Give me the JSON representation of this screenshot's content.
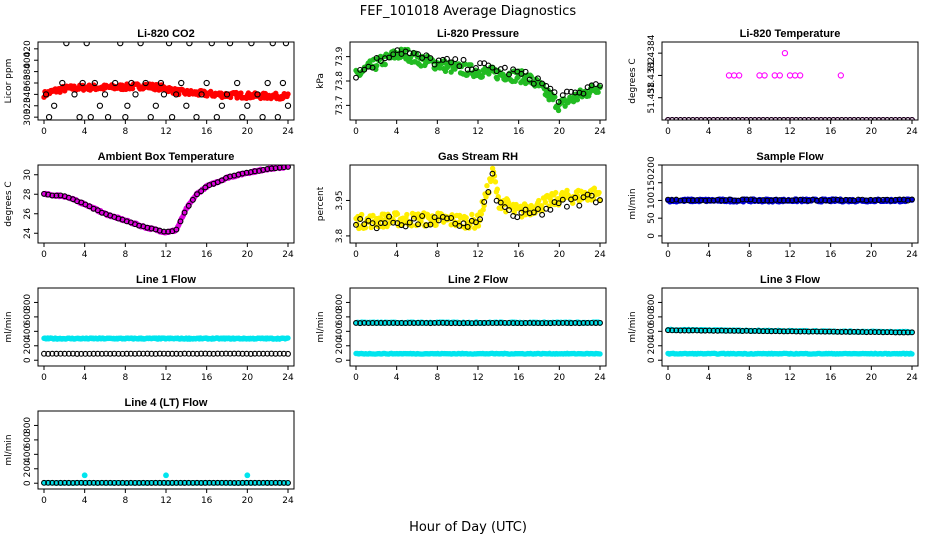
{
  "title": "FEF_101018  Average Diagnostics",
  "xlabel": "Hour of Day (UTC)",
  "chart_data": [
    {
      "type": "scatter",
      "title": "Li-820 CO2",
      "ylabel": "Licor ppm",
      "xlim": [
        0,
        24
      ],
      "ylim": [
        295,
        432
      ],
      "xticks": [
        0,
        4,
        8,
        12,
        16,
        20,
        24
      ],
      "yticks": [
        300,
        320,
        340,
        360,
        380,
        400,
        420
      ],
      "series": [
        {
          "color": "#ff0000",
          "marker": "filled",
          "trend": [
            [
              0,
              340
            ],
            [
              1,
              346
            ],
            [
              2,
              350
            ],
            [
              4,
              352
            ],
            [
              6,
              352
            ],
            [
              8,
              353
            ],
            [
              10,
              355
            ],
            [
              12,
              351
            ],
            [
              13,
              345
            ],
            [
              14,
              343
            ],
            [
              16,
              341
            ],
            [
              18,
              339
            ],
            [
              20,
              338
            ],
            [
              22,
              337
            ],
            [
              24,
              337
            ]
          ],
          "spread": 5
        },
        {
          "color": "#000000",
          "marker": "open",
          "points": [
            [
              0.2,
              340
            ],
            [
              0.5,
              300
            ],
            [
              1,
              320
            ],
            [
              1.8,
              360
            ],
            [
              2.2,
              430
            ],
            [
              3,
              340
            ],
            [
              3.5,
              300
            ],
            [
              3.8,
              360
            ],
            [
              4.2,
              430
            ],
            [
              4.6,
              300
            ],
            [
              5,
              360
            ],
            [
              5.5,
              320
            ],
            [
              6,
              340
            ],
            [
              6.3,
              300
            ],
            [
              7,
              360
            ],
            [
              7.5,
              430
            ],
            [
              8,
              300
            ],
            [
              8.2,
              320
            ],
            [
              8.6,
              360
            ],
            [
              9,
              340
            ],
            [
              9.5,
              430
            ],
            [
              10,
              360
            ],
            [
              10.5,
              300
            ],
            [
              11,
              320
            ],
            [
              11.5,
              360
            ],
            [
              11.8,
              340
            ],
            [
              12.3,
              430
            ],
            [
              12.6,
              300
            ],
            [
              13,
              340
            ],
            [
              13.5,
              360
            ],
            [
              14,
              320
            ],
            [
              14.3,
              430
            ],
            [
              15,
              300
            ],
            [
              15.5,
              340
            ],
            [
              16,
              360
            ],
            [
              16.5,
              430
            ],
            [
              17,
              300
            ],
            [
              17.5,
              320
            ],
            [
              18,
              340
            ],
            [
              18.3,
              430
            ],
            [
              19,
              360
            ],
            [
              19.5,
              300
            ],
            [
              20,
              320
            ],
            [
              20.4,
              430
            ],
            [
              21,
              340
            ],
            [
              21.5,
              300
            ],
            [
              22,
              360
            ],
            [
              22.5,
              430
            ],
            [
              23,
              300
            ],
            [
              23.5,
              360
            ],
            [
              23.8,
              430
            ],
            [
              24,
              320
            ]
          ]
        }
      ]
    },
    {
      "type": "scatter",
      "title": "Li-820 Pressure",
      "ylabel": "kPa",
      "xlim": [
        0,
        24
      ],
      "ylim": [
        73.64,
        73.96
      ],
      "xticks": [
        0,
        4,
        8,
        12,
        16,
        20,
        24
      ],
      "yticks": [
        73.7,
        73.8,
        73.9
      ],
      "series": [
        {
          "color": "#22bb22",
          "marker": "filled",
          "trend": [
            [
              0,
              73.82
            ],
            [
              1,
              73.85
            ],
            [
              2,
              73.87
            ],
            [
              3,
              73.89
            ],
            [
              4,
              73.91
            ],
            [
              5,
              73.91
            ],
            [
              6,
              73.89
            ],
            [
              8,
              73.87
            ],
            [
              10,
              73.85
            ],
            [
              12,
              73.84
            ],
            [
              14,
              73.83
            ],
            [
              16,
              73.82
            ],
            [
              17,
              73.81
            ],
            [
              18,
              73.78
            ],
            [
              19,
              73.74
            ],
            [
              20,
              73.7
            ],
            [
              21,
              73.72
            ],
            [
              22,
              73.74
            ],
            [
              23,
              73.76
            ],
            [
              24,
              73.78
            ]
          ],
          "spread": 0.025
        },
        {
          "color": "#000000",
          "marker": "open",
          "trend": [
            [
              0,
              73.83
            ],
            [
              2,
              73.88
            ],
            [
              4,
              73.93
            ],
            [
              6,
              73.9
            ],
            [
              8,
              73.88
            ],
            [
              10,
              73.87
            ],
            [
              12,
              73.86
            ],
            [
              14,
              73.85
            ],
            [
              16,
              73.83
            ],
            [
              18,
              73.8
            ],
            [
              20,
              73.73
            ],
            [
              22,
              73.75
            ],
            [
              24,
              73.8
            ]
          ],
          "spread": 0.02
        }
      ]
    },
    {
      "type": "scatter",
      "title": "Li-820 Temperature",
      "ylabel": "degrees C",
      "xlim": [
        0,
        24
      ],
      "ylim": [
        51.4378,
        51.4385
      ],
      "xticks": [
        0,
        4,
        8,
        12,
        16,
        20,
        24
      ],
      "yticks": [
        51.438,
        51.4382,
        51.4384
      ],
      "series": [
        {
          "color": "#ff00ff",
          "marker": "open",
          "points": [
            [
              6,
              51.4382
            ],
            [
              6.5,
              51.4382
            ],
            [
              7,
              51.4382
            ],
            [
              9,
              51.4382
            ],
            [
              9.5,
              51.4382
            ],
            [
              10.5,
              51.4382
            ],
            [
              11,
              51.4382
            ],
            [
              11.5,
              51.4384
            ],
            [
              12,
              51.4382
            ],
            [
              12.5,
              51.4382
            ],
            [
              13,
              51.4382
            ],
            [
              17,
              51.4382
            ]
          ],
          "baseline": 51.4378
        },
        {
          "color": "#000000",
          "marker": "open",
          "baseline": 51.4378
        }
      ]
    },
    {
      "type": "scatter",
      "title": "Ambient Box Temperature",
      "ylabel": "degrees C",
      "xlim": [
        0,
        24
      ],
      "ylim": [
        23,
        31
      ],
      "xticks": [
        0,
        4,
        8,
        12,
        16,
        20,
        24
      ],
      "yticks": [
        24,
        26,
        28,
        30
      ],
      "series": [
        {
          "color": "#dd00dd",
          "marker": "filled",
          "trend": [
            [
              0,
              28
            ],
            [
              2,
              27.8
            ],
            [
              4,
              27
            ],
            [
              6,
              26
            ],
            [
              8,
              25.3
            ],
            [
              10,
              24.6
            ],
            [
              12,
              24.1
            ],
            [
              13,
              24.3
            ],
            [
              14,
              26.5
            ],
            [
              15,
              28
            ],
            [
              16,
              28.8
            ],
            [
              18,
              29.7
            ],
            [
              20,
              30.2
            ],
            [
              22,
              30.6
            ],
            [
              24,
              30.8
            ]
          ],
          "spread": 0.1
        },
        {
          "color": "#000000",
          "marker": "open",
          "trend": [
            [
              0,
              28
            ],
            [
              2,
              27.8
            ],
            [
              4,
              27
            ],
            [
              6,
              26
            ],
            [
              8,
              25.3
            ],
            [
              10,
              24.6
            ],
            [
              12,
              24.1
            ],
            [
              13,
              24.3
            ],
            [
              14,
              26.5
            ],
            [
              15,
              28
            ],
            [
              16,
              28.8
            ],
            [
              18,
              29.7
            ],
            [
              20,
              30.2
            ],
            [
              22,
              30.6
            ],
            [
              24,
              30.8
            ]
          ],
          "spread": 0.05
        }
      ]
    },
    {
      "type": "scatter",
      "title": "Gas Stream RH",
      "ylabel": "percent",
      "xlim": [
        0,
        24
      ],
      "ylim": [
        3.77,
        4.1
      ],
      "xticks": [
        0,
        4,
        8,
        12,
        16,
        20,
        24
      ],
      "yticks": [
        3.8,
        3.95
      ],
      "series": [
        {
          "color": "#ffee00",
          "marker": "filled",
          "trend": [
            [
              0,
              3.86
            ],
            [
              4,
              3.87
            ],
            [
              8,
              3.87
            ],
            [
              12,
              3.86
            ],
            [
              13,
              4.0
            ],
            [
              13.5,
              4.07
            ],
            [
              14,
              3.95
            ],
            [
              16,
              3.9
            ],
            [
              18,
              3.93
            ],
            [
              20,
              3.96
            ],
            [
              22,
              3.97
            ],
            [
              24,
              3.98
            ]
          ],
          "spread": 0.03
        },
        {
          "color": "#000000",
          "marker": "open",
          "trend": [
            [
              0,
              3.85
            ],
            [
              4,
              3.86
            ],
            [
              8,
              3.86
            ],
            [
              12,
              3.85
            ],
            [
              13,
              3.98
            ],
            [
              13.5,
              4.05
            ],
            [
              14,
              3.93
            ],
            [
              16,
              3.88
            ],
            [
              18,
              3.9
            ],
            [
              20,
              3.93
            ],
            [
              22,
              3.95
            ],
            [
              24,
              3.97
            ]
          ],
          "spread": 0.025
        }
      ]
    },
    {
      "type": "scatter",
      "title": "Sample Flow",
      "ylabel": "ml/min",
      "xlim": [
        0,
        24
      ],
      "ylim": [
        -20,
        200
      ],
      "xticks": [
        0,
        4,
        8,
        12,
        16,
        20,
        24
      ],
      "yticks": [
        0,
        50,
        100,
        150,
        200
      ],
      "series": [
        {
          "color": "#0000dd",
          "marker": "filled",
          "trend": [
            [
              0,
              100
            ],
            [
              24,
              100
            ]
          ],
          "spread": 4
        },
        {
          "color": "#000000",
          "marker": "open",
          "trend": [
            [
              0,
              101
            ],
            [
              24,
              101
            ]
          ],
          "spread": 2
        }
      ]
    },
    {
      "type": "scatter",
      "title": "Line 1 Flow",
      "ylabel": "ml/min",
      "xlim": [
        0,
        24
      ],
      "ylim": [
        -80,
        1000
      ],
      "xticks": [
        0,
        4,
        8,
        12,
        16,
        20,
        24
      ],
      "yticks": [
        0,
        200,
        400,
        600,
        800
      ],
      "series": [
        {
          "color": "#00e5ee",
          "marker": "filled",
          "trend": [
            [
              0,
              300
            ],
            [
              24,
              300
            ]
          ],
          "spread": 8
        },
        {
          "color": "#000000",
          "marker": "open",
          "trend": [
            [
              0,
              90
            ],
            [
              24,
              90
            ]
          ],
          "spread": 2
        }
      ]
    },
    {
      "type": "scatter",
      "title": "Line 2 Flow",
      "ylabel": "ml/min",
      "xlim": [
        0,
        24
      ],
      "ylim": [
        -80,
        1000
      ],
      "xticks": [
        0,
        4,
        8,
        12,
        16,
        20,
        24
      ],
      "yticks": [
        0,
        200,
        400,
        600,
        800
      ],
      "series": [
        {
          "color": "#00e5ee",
          "marker": "filled",
          "trend": [
            [
              0,
              520
            ],
            [
              24,
              520
            ]
          ],
          "spread": 8,
          "second": 90
        },
        {
          "color": "#000000",
          "marker": "open",
          "trend": [
            [
              0,
              515
            ],
            [
              24,
              515
            ]
          ],
          "spread": 2
        }
      ]
    },
    {
      "type": "scatter",
      "title": "Line 3 Flow",
      "ylabel": "ml/min",
      "xlim": [
        0,
        24
      ],
      "ylim": [
        -80,
        1000
      ],
      "xticks": [
        0,
        4,
        8,
        12,
        16,
        20,
        24
      ],
      "yticks": [
        0,
        200,
        400,
        600,
        800
      ],
      "series": [
        {
          "color": "#00e5ee",
          "marker": "filled",
          "trend": [
            [
              0,
              420
            ],
            [
              24,
              390
            ]
          ],
          "spread": 8,
          "second": 90
        },
        {
          "color": "#000000",
          "marker": "open",
          "trend": [
            [
              0,
              415
            ],
            [
              24,
              385
            ]
          ],
          "spread": 2
        }
      ]
    },
    {
      "type": "scatter",
      "title": "Line 4 (LT) Flow",
      "ylabel": "ml/min",
      "xlim": [
        0,
        24
      ],
      "ylim": [
        -80,
        1000
      ],
      "xticks": [
        0,
        4,
        8,
        12,
        16,
        20,
        24
      ],
      "yticks": [
        0,
        200,
        400,
        600,
        800
      ],
      "series": [
        {
          "color": "#00e5ee",
          "marker": "filled",
          "trend": [
            [
              0,
              5
            ],
            [
              24,
              5
            ]
          ],
          "spread": 3,
          "points": [
            [
              4,
              110
            ],
            [
              12,
              110
            ],
            [
              20,
              110
            ]
          ]
        },
        {
          "color": "#000000",
          "marker": "open",
          "trend": [
            [
              0,
              5
            ],
            [
              24,
              5
            ]
          ],
          "spread": 1
        }
      ]
    }
  ]
}
